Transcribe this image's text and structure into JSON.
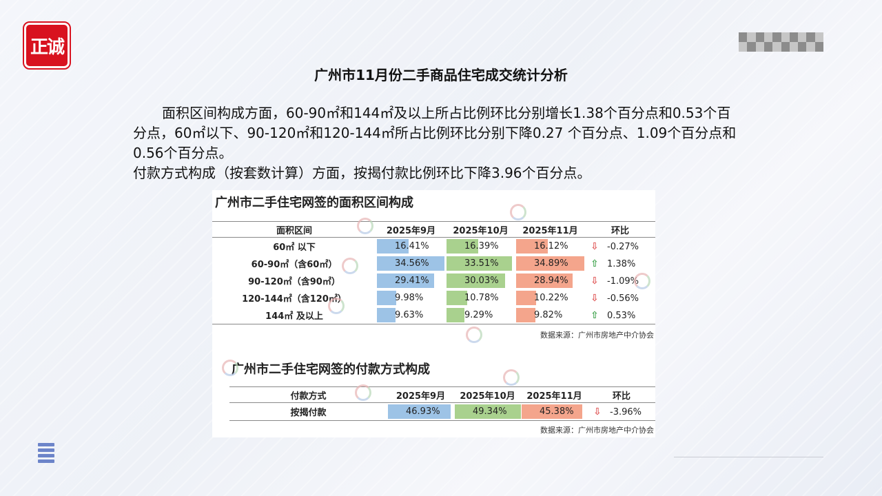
{
  "logo": {
    "text": "正诚"
  },
  "title": "广州市11月份二手商品住宅成交统计分析",
  "paragraphs": [
    "面积区间构成方面，60-90㎡和144㎡及以上所占比例环比分别增长1.38个百分点和0.53个百分点，60㎡以下、90-120㎡和120-144㎡所占比例环比分别下降0.27 个百分点、1.09个百分点和0.56个百分点。",
    "付款方式构成（按套数计算）方面，按揭付款比例环比下降3.96个百分点。"
  ],
  "figure": {
    "area_table": {
      "title": "广州市二手住宅网签的面积区间构成",
      "headers": [
        "面积区间",
        "2025年9月",
        "2025年10月",
        "2025年11月",
        "环比"
      ],
      "rows": [
        {
          "label": "60㎡ 以下",
          "sep": "16.41%",
          "oct": "16.39%",
          "nov": "16.12%",
          "dir": "down",
          "change": "-0.27%"
        },
        {
          "label": "60-90㎡（含60㎡）",
          "sep": "34.56%",
          "oct": "33.51%",
          "nov": "34.89%",
          "dir": "up",
          "change": "1.38%"
        },
        {
          "label": "90-120㎡（含90㎡）",
          "sep": "29.41%",
          "oct": "30.03%",
          "nov": "28.94%",
          "dir": "down",
          "change": "-1.09%"
        },
        {
          "label": "120-144㎡（含120㎡）",
          "sep": "9.98%",
          "oct": "10.78%",
          "nov": "10.22%",
          "dir": "down",
          "change": "-0.56%"
        },
        {
          "label": "144㎡ 及以上",
          "sep": "9.63%",
          "oct": "9.29%",
          "nov": "9.82%",
          "dir": "up",
          "change": "0.53%"
        }
      ],
      "source": "数据来源：广州市房地产中介协会"
    },
    "payment_table": {
      "title": "广州市二手住宅网签的付款方式构成",
      "headers": [
        "付款方式",
        "2025年9月",
        "2025年10月",
        "2025年11月",
        "环比"
      ],
      "rows": [
        {
          "label": "按揭付款",
          "sep": "46.93%",
          "oct": "49.34%",
          "nov": "45.38%",
          "dir": "down",
          "change": "-3.96%"
        }
      ],
      "source": "数据来源：广州市房地产中介协会"
    }
  },
  "colors": {
    "sep_bar": "#9dc3e6",
    "oct_bar": "#a9d18e",
    "nov_bar": "#f4a58c",
    "logo_red": "#d8121f",
    "up_arrow": "#3fa34d",
    "down_arrow": "#e05a5a"
  },
  "icons": {
    "up": "arrow-up-icon",
    "down": "arrow-down-icon",
    "menu": "menu-icon"
  }
}
